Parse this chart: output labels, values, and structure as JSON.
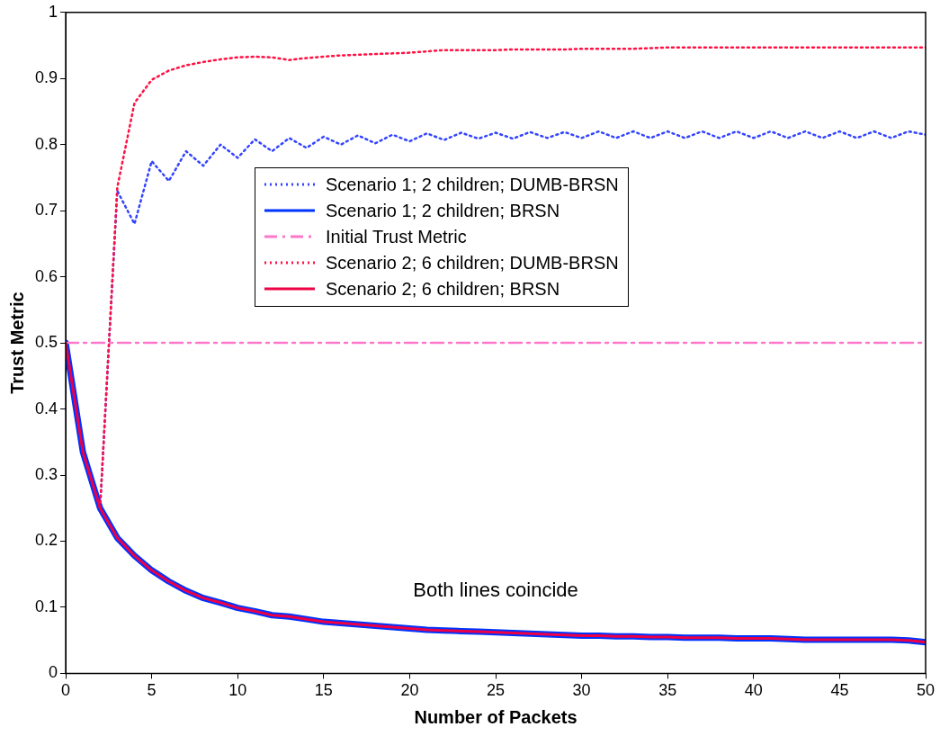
{
  "chart_data": {
    "type": "line",
    "xlabel": "Number of Packets",
    "ylabel": "Trust Metric",
    "x": [
      0,
      1,
      2,
      3,
      4,
      5,
      6,
      7,
      8,
      9,
      10,
      11,
      12,
      13,
      14,
      15,
      16,
      17,
      18,
      19,
      20,
      21,
      22,
      23,
      24,
      25,
      26,
      27,
      28,
      29,
      30,
      31,
      32,
      33,
      34,
      35,
      36,
      37,
      38,
      39,
      40,
      41,
      42,
      43,
      44,
      45,
      46,
      47,
      48,
      49,
      50
    ],
    "xlim": [
      0,
      50
    ],
    "xticks": [
      0,
      5,
      10,
      15,
      20,
      25,
      30,
      35,
      40,
      45,
      50
    ],
    "ylim": [
      0,
      1
    ],
    "yticks": [
      0,
      0.1,
      0.2,
      0.3,
      0.4,
      0.5,
      0.6,
      0.7,
      0.8,
      0.9,
      1
    ],
    "grid": false,
    "legend": "top",
    "marker": "none",
    "annotations": [
      "Both lines coincide"
    ],
    "series": [
      {
        "name": "Scenario 1; 2 children; DUMB-BRSN",
        "color": "#3344ff",
        "line_style": "dotted",
        "values": [
          null,
          null,
          0.25,
          0.73,
          0.68,
          0.775,
          0.745,
          0.79,
          0.768,
          0.8,
          0.78,
          0.808,
          0.79,
          0.81,
          0.795,
          0.812,
          0.8,
          0.814,
          0.802,
          0.815,
          0.805,
          0.817,
          0.807,
          0.818,
          0.809,
          0.818,
          0.809,
          0.819,
          0.81,
          0.819,
          0.81,
          0.82,
          0.81,
          0.82,
          0.81,
          0.82,
          0.81,
          0.82,
          0.81,
          0.82,
          0.81,
          0.82,
          0.81,
          0.82,
          0.81,
          0.82,
          0.81,
          0.82,
          0.81,
          0.82,
          0.815
        ]
      },
      {
        "name": "Scenario 1; 2 children; BRSN",
        "color": "#0033ff",
        "line_style": "solid",
        "values": [
          0.5,
          0.335,
          0.25,
          0.205,
          0.178,
          0.156,
          0.139,
          0.125,
          0.114,
          0.107,
          0.099,
          0.094,
          0.088,
          0.086,
          0.082,
          0.078,
          0.076,
          0.074,
          0.072,
          0.07,
          0.068,
          0.066,
          0.065,
          0.064,
          0.063,
          0.062,
          0.061,
          0.06,
          0.059,
          0.058,
          0.057,
          0.057,
          0.056,
          0.056,
          0.055,
          0.055,
          0.054,
          0.054,
          0.054,
          0.053,
          0.053,
          0.053,
          0.052,
          0.051,
          0.051,
          0.051,
          0.051,
          0.051,
          0.051,
          0.05,
          0.047
        ]
      },
      {
        "name": "Initial Trust Metric",
        "color": "#ff77cc",
        "line_style": "dashed",
        "x": [
          0,
          50
        ],
        "values": [
          0.5,
          0.5
        ]
      },
      {
        "name": "Scenario 2; 6 children; DUMB-BRSN",
        "color": "#ff1144",
        "line_style": "dotted",
        "values": [
          null,
          null,
          0.25,
          0.735,
          0.863,
          0.898,
          0.912,
          0.92,
          0.925,
          0.929,
          0.932,
          0.933,
          0.932,
          0.928,
          0.931,
          0.933,
          0.935,
          0.936,
          0.937,
          0.938,
          0.939,
          0.941,
          0.943,
          0.943,
          0.943,
          0.943,
          0.944,
          0.944,
          0.944,
          0.944,
          0.945,
          0.945,
          0.945,
          0.945,
          0.946,
          0.947,
          0.947,
          0.947,
          0.947,
          0.947,
          0.947,
          0.947,
          0.947,
          0.947,
          0.947,
          0.947,
          0.947,
          0.947,
          0.947,
          0.947,
          0.947
        ]
      },
      {
        "name": "Scenario 2; 6 children; BRSN",
        "color": "#ee0044",
        "line_style": "solid",
        "values": [
          0.5,
          0.335,
          0.25,
          0.205,
          0.178,
          0.156,
          0.139,
          0.125,
          0.114,
          0.107,
          0.099,
          0.094,
          0.088,
          0.086,
          0.082,
          0.078,
          0.076,
          0.074,
          0.072,
          0.07,
          0.068,
          0.066,
          0.065,
          0.064,
          0.063,
          0.062,
          0.061,
          0.06,
          0.059,
          0.058,
          0.057,
          0.057,
          0.056,
          0.056,
          0.055,
          0.055,
          0.054,
          0.054,
          0.054,
          0.053,
          0.053,
          0.053,
          0.052,
          0.051,
          0.051,
          0.051,
          0.051,
          0.051,
          0.051,
          0.05,
          0.047
        ]
      }
    ]
  }
}
